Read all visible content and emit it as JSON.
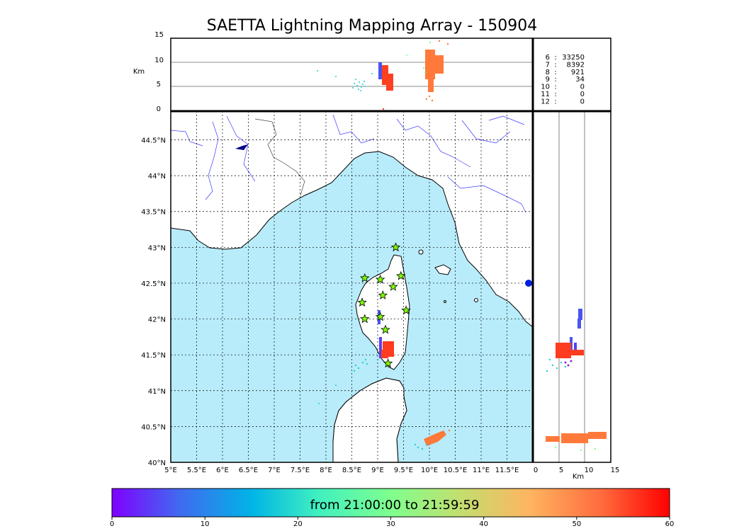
{
  "title": "SAETTA Lightning Mapping Array - 150904",
  "top_panel": {
    "y_label": "Km",
    "y_ticks": [
      "15",
      "10",
      "5",
      "0"
    ],
    "stats": [
      {
        "key": "6",
        "sep": ":",
        "value": "33250",
        "color": "#000000"
      },
      {
        "key": "7",
        "sep": ":",
        "value": "8392",
        "color": "#ff0000"
      },
      {
        "key": "8",
        "sep": ":",
        "value": "921",
        "color": "#000000"
      },
      {
        "key": "9",
        "sep": ":",
        "value": "34",
        "color": "#000000"
      },
      {
        "key": "10",
        "sep": ":",
        "value": "0",
        "color": "#000000"
      },
      {
        "key": "11",
        "sep": ":",
        "value": "0",
        "color": "#000000"
      },
      {
        "key": "12",
        "sep": ":",
        "value": "0",
        "color": "#000000"
      }
    ]
  },
  "map_panel": {
    "lat_labels": [
      "44.5°N",
      "44°N",
      "43.5°N",
      "43°N",
      "42.5°N",
      "42°N",
      "41.5°N",
      "41°N",
      "40.5°N",
      "40°N"
    ],
    "lon_labels": [
      "5°E",
      "5.5°E",
      "6°E",
      "6.5°E",
      "7°E",
      "7.5°E",
      "8°E",
      "8.5°E",
      "9°E",
      "9.5°E",
      "10°E",
      "10.5°E",
      "11°E",
      "11.5°E"
    ],
    "sea_color": "#b8ecfa",
    "station_color": "#7cfc00",
    "stations": [
      {
        "lon": 9.35,
        "lat": 43.0
      },
      {
        "lon": 8.75,
        "lat": 42.57
      },
      {
        "lon": 9.05,
        "lat": 42.55
      },
      {
        "lon": 9.45,
        "lat": 42.6
      },
      {
        "lon": 9.3,
        "lat": 42.45
      },
      {
        "lon": 9.1,
        "lat": 42.33
      },
      {
        "lon": 8.7,
        "lat": 42.23
      },
      {
        "lon": 9.55,
        "lat": 42.12
      },
      {
        "lon": 9.05,
        "lat": 42.03
      },
      {
        "lon": 8.75,
        "lat": 42.0
      },
      {
        "lon": 9.15,
        "lat": 41.85
      },
      {
        "lon": 9.2,
        "lat": 41.38
      }
    ]
  },
  "side_panel": {
    "x_label": "Km",
    "x_ticks": [
      "0",
      "5",
      "10",
      "15"
    ]
  },
  "colorbar": {
    "label": "from 21:00:00 to 21:59:59",
    "ticks": [
      "0",
      "10",
      "20",
      "30",
      "40",
      "50",
      "60"
    ],
    "colors": [
      "#7f00ff",
      "#4169f0",
      "#00b4e6",
      "#40f0c0",
      "#7fff8e",
      "#c0e070",
      "#ffb460",
      "#ff6a3c",
      "#ff0000"
    ]
  }
}
